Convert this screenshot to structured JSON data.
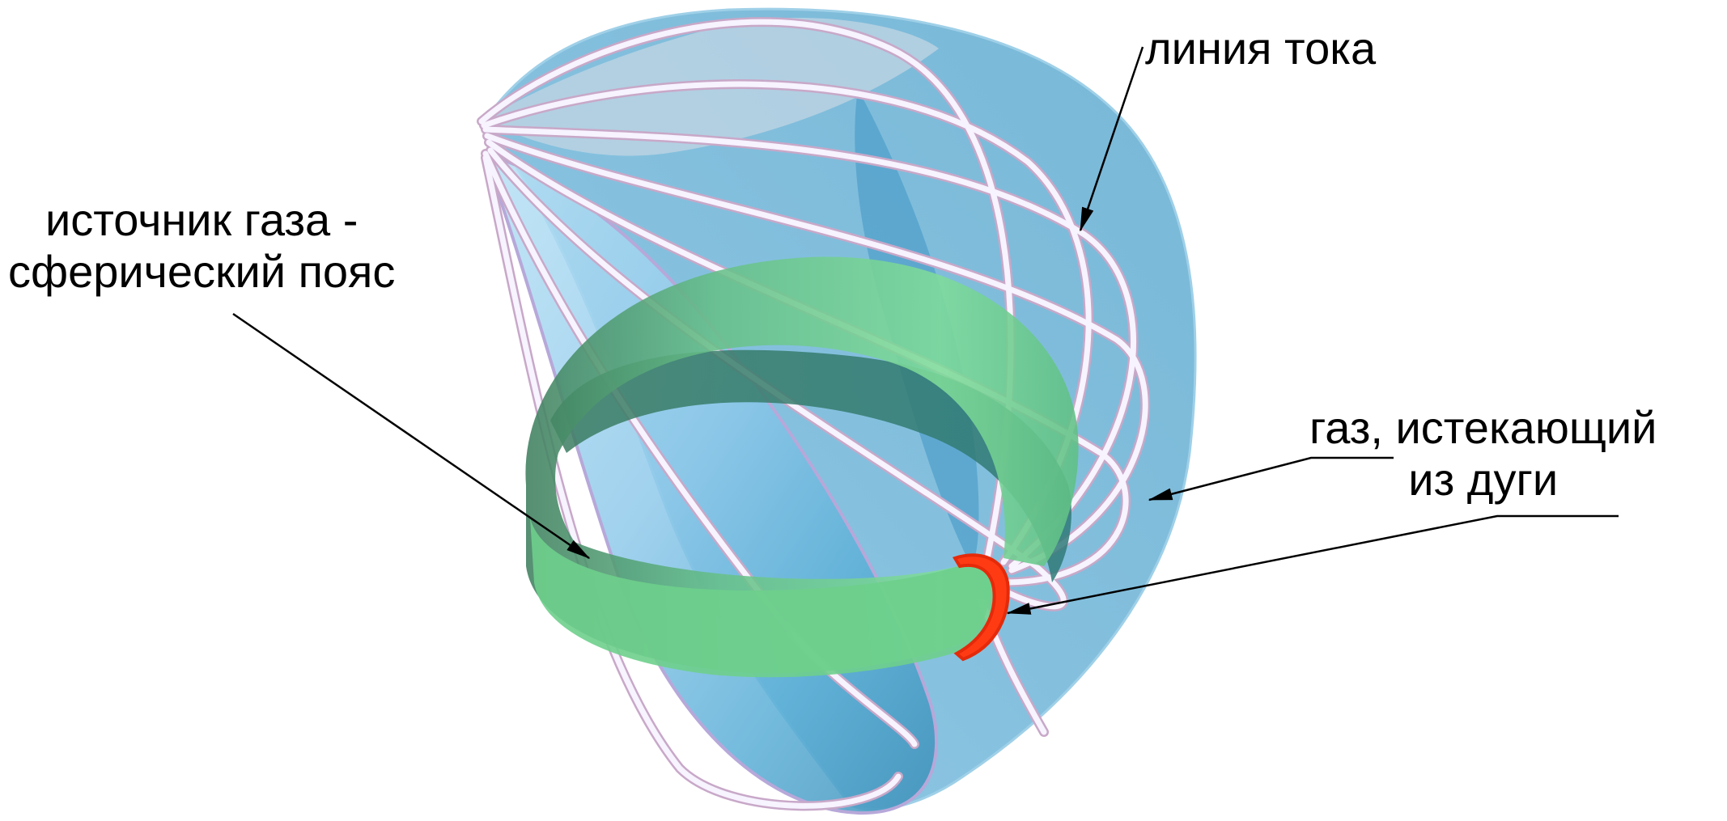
{
  "labels": {
    "streamline": "линия тока",
    "gas_source_line1": "источник газа -",
    "gas_source_line2": "сферический пояс",
    "gas_outflow_line1": "газ, истекающий",
    "gas_outflow_line2": "из дуги"
  },
  "colors": {
    "surface_blue": "#5aaed6",
    "surface_blue_light": "#a9d8f2",
    "streamline_tube": "#f4efff",
    "streamline_edge": "#c9a9c9",
    "belt_green": "#6fd08a",
    "belt_green_dark": "#3f8a6a",
    "arc_red": "#ff3b14",
    "leader_line": "#000000"
  },
  "icons": {
    "arrowhead": "arrowhead-icon"
  }
}
